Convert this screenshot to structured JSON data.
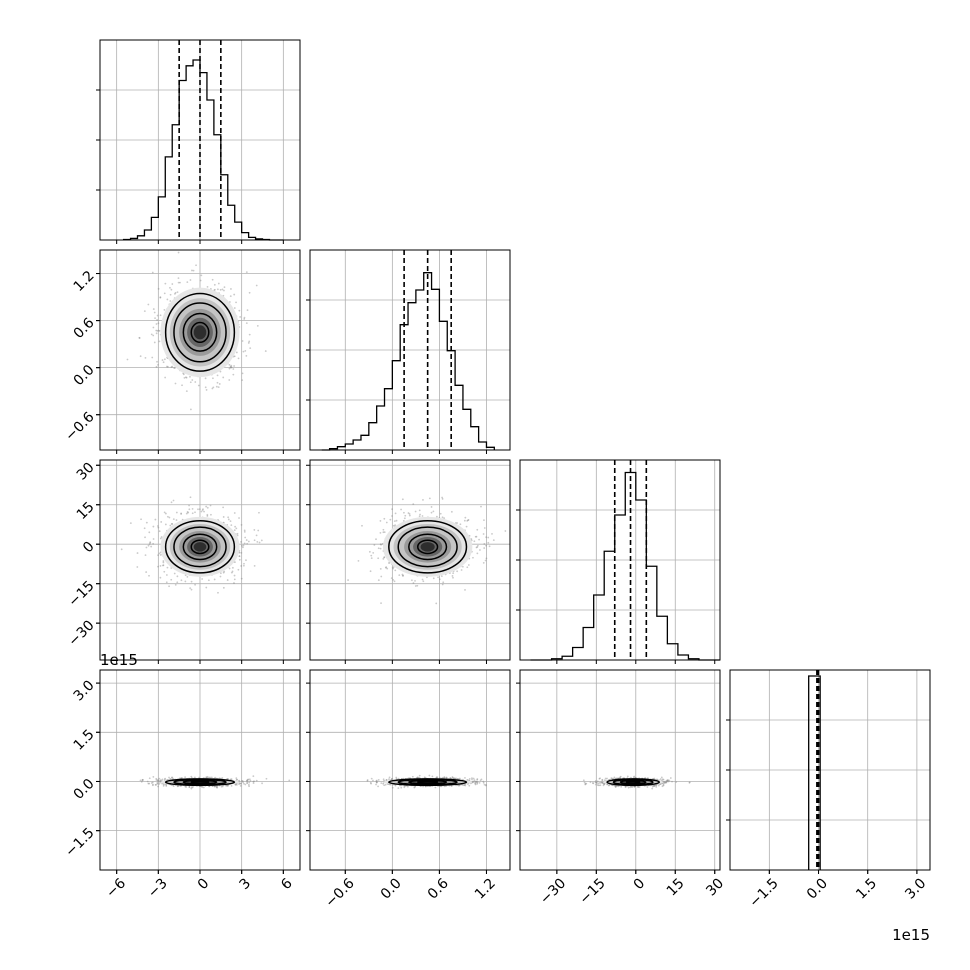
{
  "chart_data": {
    "type": "corner",
    "grid": true,
    "variables": [
      {
        "ticks": [
          -6,
          -3,
          0,
          3,
          6
        ],
        "tick_labels": [
          "−6",
          "−3",
          "0",
          "3",
          "6"
        ],
        "range": [
          -7.2,
          7.2
        ]
      },
      {
        "ticks": [
          -0.6,
          0.0,
          0.6,
          1.2
        ],
        "tick_labels": [
          "−0.6",
          "0.0",
          "0.6",
          "1.2"
        ],
        "range": [
          -1.05,
          1.5
        ]
      },
      {
        "ticks": [
          -30,
          -15,
          0,
          15,
          30
        ],
        "tick_labels": [
          "−30",
          "−15",
          "0",
          "15",
          "30"
        ],
        "range": [
          -44,
          32
        ]
      },
      {
        "ticks": [
          -1.5,
          0.0,
          1.5,
          3.0
        ],
        "tick_labels": [
          "−1.5",
          "0.0",
          "1.5",
          "3.0"
        ],
        "range": [
          -2.7,
          3.4
        ],
        "offset_text": "1e15"
      }
    ],
    "marginals": [
      {
        "edges": [
          -5.5,
          -5,
          -4.5,
          -4,
          -3.5,
          -3,
          -2.5,
          -2,
          -1.5,
          -1,
          -0.5,
          0,
          0.5,
          1,
          1.5,
          2,
          2.5,
          3,
          3.5,
          4,
          4.5,
          5,
          5.5,
          6
        ],
        "counts": [
          1,
          3,
          8,
          19,
          43,
          82,
          158,
          219,
          303,
          331,
          342,
          318,
          266,
          200,
          124,
          66,
          34,
          14,
          5,
          2,
          1,
          0,
          0
        ],
        "max": 380,
        "quantiles": [
          -1.5,
          0.0,
          1.5
        ]
      },
      {
        "edges": [
          -0.9,
          -0.8,
          -0.7,
          -0.6,
          -0.5,
          -0.4,
          -0.3,
          -0.2,
          -0.1,
          0,
          0.1,
          0.2,
          0.3,
          0.4,
          0.5,
          0.6,
          0.7,
          0.8,
          0.9,
          1.0,
          1.1,
          1.2,
          1.3
        ],
        "counts": [
          0,
          2,
          5,
          9,
          15,
          22,
          41,
          66,
          92,
          134,
          188,
          221,
          240,
          266,
          241,
          193,
          149,
          97,
          61,
          35,
          12,
          4
        ],
        "max": 300,
        "quantiles": [
          0.15,
          0.45,
          0.75
        ]
      },
      {
        "edges": [
          -40,
          -36,
          -32,
          -28,
          -24,
          -20,
          -16,
          -12,
          -8,
          -4,
          0,
          4,
          8,
          12,
          16,
          20,
          24,
          28,
          32
        ],
        "counts": [
          0,
          0,
          1,
          3,
          10,
          26,
          52,
          87,
          116,
          150,
          128,
          75,
          35,
          13,
          4,
          1,
          0,
          0
        ],
        "max": 160,
        "quantiles": [
          -8,
          -2,
          4
        ]
      },
      {
        "edges": [
          -0.3,
          -0.05,
          0.05
        ],
        "counts": [
          97,
          97
        ],
        "max": 100,
        "quantiles": [
          -0.05,
          -0.02,
          0.0
        ]
      }
    ],
    "pairs": [
      {
        "x": 0,
        "y": 1,
        "center": [
          0.0,
          0.45
        ],
        "sigma": [
          1.5,
          0.3
        ],
        "contour_scale": [
          0.42,
          0.8,
          1.25,
          1.65
        ]
      },
      {
        "x": 0,
        "y": 2,
        "center": [
          0.0,
          -1.0
        ],
        "sigma": [
          1.5,
          6.0
        ],
        "contour_scale": [
          0.42,
          0.8,
          1.25,
          1.65
        ]
      },
      {
        "x": 1,
        "y": 2,
        "center": [
          0.45,
          -1.0
        ],
        "sigma": [
          0.3,
          6.0
        ],
        "contour_scale": [
          0.42,
          0.8,
          1.25,
          1.65
        ]
      },
      {
        "x": 0,
        "y": 3,
        "center": [
          0.0,
          -0.02
        ],
        "sigma": [
          1.5,
          0.06
        ],
        "contour_scale": [
          0.42,
          0.8,
          1.25,
          1.65
        ]
      },
      {
        "x": 1,
        "y": 3,
        "center": [
          0.45,
          -0.02
        ],
        "sigma": [
          0.3,
          0.06
        ],
        "contour_scale": [
          0.42,
          0.8,
          1.25,
          1.65
        ]
      },
      {
        "x": 2,
        "y": 3,
        "center": [
          -1.0,
          -0.02
        ],
        "sigma": [
          6.0,
          0.06
        ],
        "contour_scale": [
          0.42,
          0.8,
          1.25,
          1.65
        ]
      }
    ]
  }
}
